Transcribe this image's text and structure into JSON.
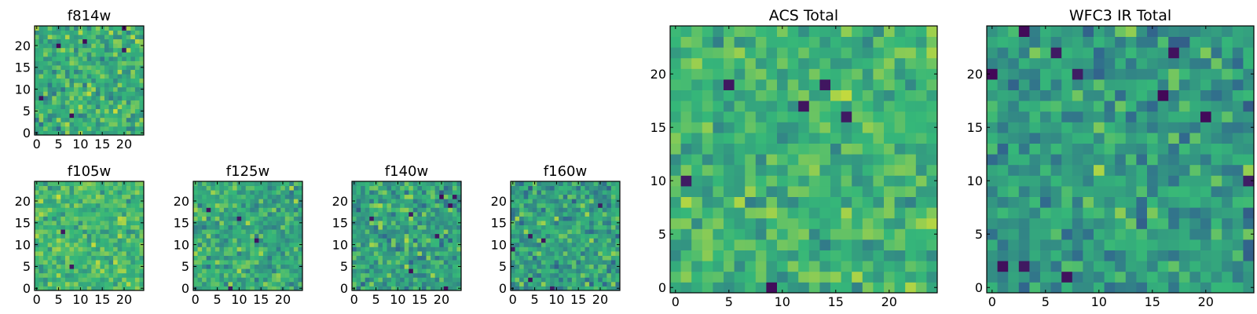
{
  "colormap": [
    "#440154",
    "#31688e",
    "#35b779",
    "#fde725"
  ],
  "chart_data": [
    {
      "type": "heatmap",
      "title": "f814w",
      "xlim": [
        -0.5,
        24.5
      ],
      "ylim": [
        -0.5,
        24.5
      ],
      "xticks": [
        0,
        5,
        10,
        15,
        20
      ],
      "yticks": [
        0,
        5,
        10,
        15,
        20
      ],
      "grid_size": 25,
      "seed": 11,
      "dark_fraction": 0.015,
      "mean": 0.63,
      "spread": 0.2
    },
    {
      "type": "heatmap",
      "title": "f105w",
      "xlim": [
        -0.5,
        24.5
      ],
      "ylim": [
        -0.5,
        24.5
      ],
      "xticks": [
        0,
        5,
        10,
        15,
        20
      ],
      "yticks": [
        0,
        5,
        10,
        15,
        20
      ],
      "grid_size": 25,
      "seed": 23,
      "dark_fraction": 0.008,
      "mean": 0.68,
      "spread": 0.17
    },
    {
      "type": "heatmap",
      "title": "f125w",
      "xlim": [
        -0.5,
        24.5
      ],
      "ylim": [
        -0.5,
        24.5
      ],
      "xticks": [
        0,
        5,
        10,
        15,
        20
      ],
      "yticks": [
        0,
        5,
        10,
        15,
        20
      ],
      "grid_size": 25,
      "seed": 37,
      "dark_fraction": 0.014,
      "mean": 0.62,
      "spread": 0.2
    },
    {
      "type": "heatmap",
      "title": "f140w",
      "xlim": [
        -0.5,
        24.5
      ],
      "ylim": [
        -0.5,
        24.5
      ],
      "xticks": [
        0,
        5,
        10,
        15,
        20
      ],
      "yticks": [
        0,
        5,
        10,
        15,
        20
      ],
      "grid_size": 25,
      "seed": 41,
      "dark_fraction": 0.014,
      "mean": 0.58,
      "spread": 0.21
    },
    {
      "type": "heatmap",
      "title": "f160w",
      "xlim": [
        -0.5,
        24.5
      ],
      "ylim": [
        -0.5,
        24.5
      ],
      "xticks": [
        0,
        5,
        10,
        15,
        20
      ],
      "yticks": [
        0,
        5,
        10,
        15,
        20
      ],
      "grid_size": 25,
      "seed": 53,
      "dark_fraction": 0.016,
      "mean": 0.58,
      "spread": 0.21
    },
    {
      "type": "heatmap",
      "title": "ACS Total",
      "xlim": [
        -0.5,
        24.5
      ],
      "ylim": [
        -0.5,
        24.5
      ],
      "xticks": [
        0,
        5,
        10,
        15,
        20
      ],
      "yticks": [
        0,
        5,
        10,
        15,
        20
      ],
      "grid_size": 25,
      "seed": 67,
      "dark_fraction": 0.014,
      "mean": 0.66,
      "spread": 0.17
    },
    {
      "type": "heatmap",
      "title": "WFC3 IR Total",
      "xlim": [
        -0.5,
        24.5
      ],
      "ylim": [
        -0.5,
        24.5
      ],
      "xticks": [
        0,
        5,
        10,
        15,
        20
      ],
      "yticks": [
        0,
        5,
        10,
        15,
        20
      ],
      "grid_size": 25,
      "seed": 79,
      "dark_fraction": 0.022,
      "mean": 0.55,
      "spread": 0.2
    }
  ]
}
